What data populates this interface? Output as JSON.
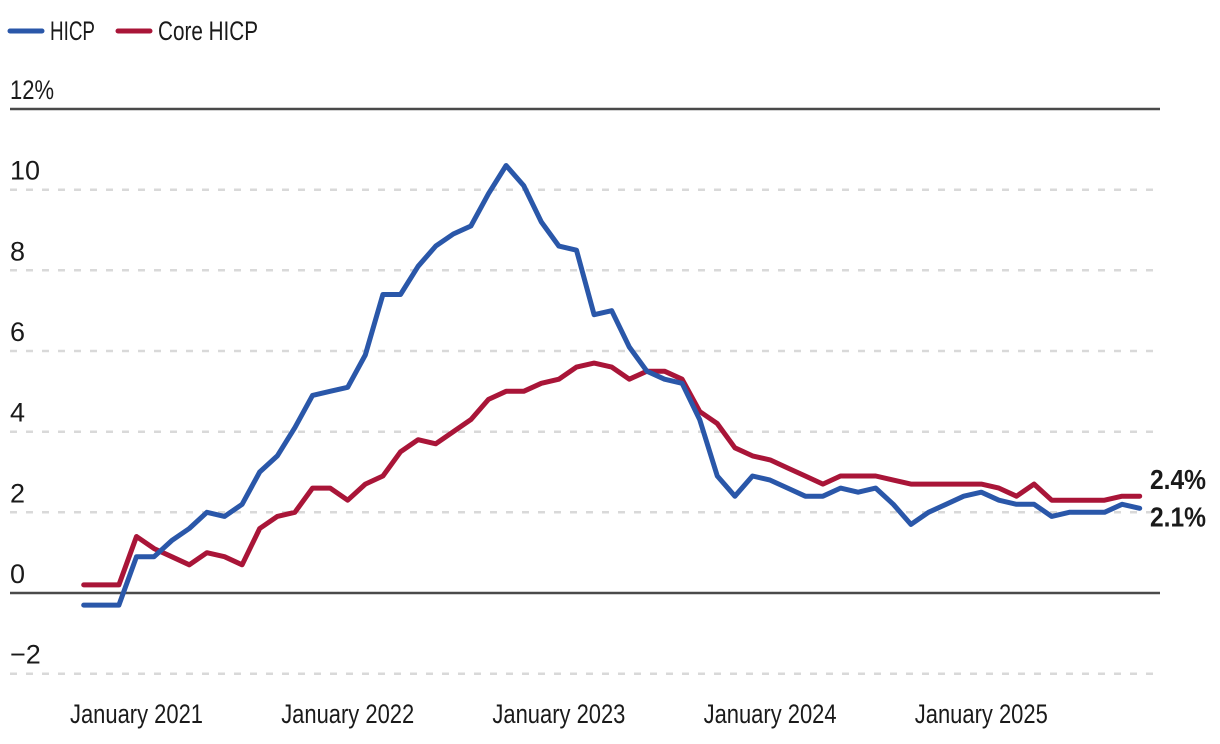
{
  "legend": {
    "items": [
      {
        "label": "HICP",
        "color": "#2a57a9"
      },
      {
        "label": "Core HICP",
        "color": "#a91538"
      }
    ]
  },
  "chart_data": {
    "type": "line",
    "title": "",
    "x_frequency": "monthly",
    "x_start": "October 2020",
    "x_end": "October 2025",
    "x_tick_labels": [
      "January 2021",
      "January 2022",
      "January 2023",
      "January 2024",
      "January 2025"
    ],
    "y_tick_labels": [
      "12%",
      "10",
      "8",
      "6",
      "4",
      "2",
      "0",
      "−2"
    ],
    "y_tick_values": [
      12,
      10,
      8,
      6,
      4,
      2,
      0,
      -2
    ],
    "ylim": [
      -2,
      12
    ],
    "grid": "horizontal; dashed light lines, solid dark lines at 12 and 0",
    "legend_position": "top-left",
    "series": [
      {
        "name": "Core HICP",
        "color": "#a91538",
        "end_label": "2.4%",
        "values": [
          0.2,
          0.2,
          0.2,
          1.4,
          1.1,
          0.9,
          0.7,
          1.0,
          0.9,
          0.7,
          1.6,
          1.9,
          2.0,
          2.6,
          2.6,
          2.3,
          2.7,
          2.9,
          3.5,
          3.8,
          3.7,
          4.0,
          4.3,
          4.8,
          5.0,
          5.0,
          5.2,
          5.3,
          5.6,
          5.7,
          5.6,
          5.3,
          5.5,
          5.5,
          5.3,
          4.5,
          4.2,
          3.6,
          3.4,
          3.3,
          3.1,
          2.9,
          2.7,
          2.9,
          2.9,
          2.9,
          2.8,
          2.7,
          2.7,
          2.7,
          2.7,
          2.7,
          2.6,
          2.4,
          2.7,
          2.3,
          2.3,
          2.3,
          2.3,
          2.4,
          2.4
        ]
      },
      {
        "name": "HICP",
        "color": "#2a57a9",
        "end_label": "2.1%",
        "values": [
          -0.3,
          -0.3,
          -0.3,
          0.9,
          0.9,
          1.3,
          1.6,
          2.0,
          1.9,
          2.2,
          3.0,
          3.4,
          4.1,
          4.9,
          5.0,
          5.1,
          5.9,
          7.4,
          7.4,
          8.1,
          8.6,
          8.9,
          9.1,
          9.9,
          10.6,
          10.1,
          9.2,
          8.6,
          8.5,
          6.9,
          7.0,
          6.1,
          5.5,
          5.3,
          5.2,
          4.3,
          2.9,
          2.4,
          2.9,
          2.8,
          2.6,
          2.4,
          2.4,
          2.6,
          2.5,
          2.6,
          2.2,
          1.7,
          2.0,
          2.2,
          2.4,
          2.5,
          2.3,
          2.2,
          2.2,
          1.9,
          2.0,
          2.0,
          2.0,
          2.2,
          2.1
        ]
      }
    ],
    "colors": {
      "hicp_line": "#2a57a9",
      "core_hicp_line": "#a91538",
      "dashed_grid": "#d9d9d9",
      "solid_grid": "#4a4a4a",
      "text": "#1a1a1a",
      "background": "#ffffff"
    }
  }
}
